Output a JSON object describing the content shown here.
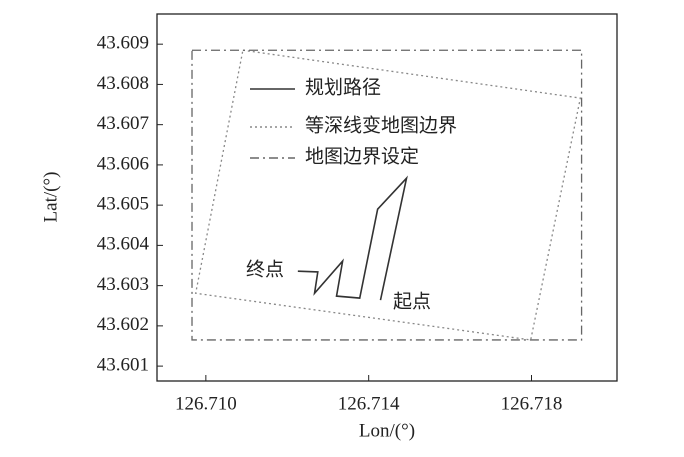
{
  "chart_data": {
    "type": "line",
    "x_label": "Lon/(°)",
    "y_label": "Lat/(°)",
    "xlim": [
      126.7088,
      126.7201
    ],
    "ylim": [
      43.60063,
      43.60975
    ],
    "xticks": [
      {
        "value": 126.71,
        "label": "126.710"
      },
      126.714,
      126.718
    ],
    "yticks": [
      43.601,
      43.602,
      43.603,
      43.604,
      43.605,
      43.606,
      43.607,
      43.608,
      43.609
    ],
    "legend": "upper left",
    "series": [
      {
        "name": "规划路径",
        "color": "#333333",
        "style": "solid",
        "x": [
          126.71226,
          126.71275,
          126.71267,
          126.71336,
          126.71321,
          126.71378,
          126.71422,
          126.71493,
          126.71429
        ],
        "values": [
          43.60336,
          43.60334,
          43.60281,
          43.60361,
          43.60274,
          43.60269,
          43.6049,
          43.60567,
          43.60264
        ]
      },
      {
        "name": "等深线变地图边界",
        "color": "#888888",
        "style": "dotted",
        "x": [
          126.71091,
          126.7192,
          126.71798,
          126.70975,
          126.71091
        ],
        "values": [
          43.60885,
          43.60766,
          43.60165,
          43.60281,
          43.60885
        ]
      },
      {
        "name": "地图边界设定",
        "color": "#666666",
        "style": "dashdot",
        "x": [
          126.70966,
          126.71923,
          126.71923,
          126.70966,
          126.70966
        ],
        "values": [
          43.60885,
          43.60885,
          43.60165,
          43.60165,
          43.60885
        ]
      }
    ],
    "annotations": [
      "终点",
      "起点"
    ]
  }
}
